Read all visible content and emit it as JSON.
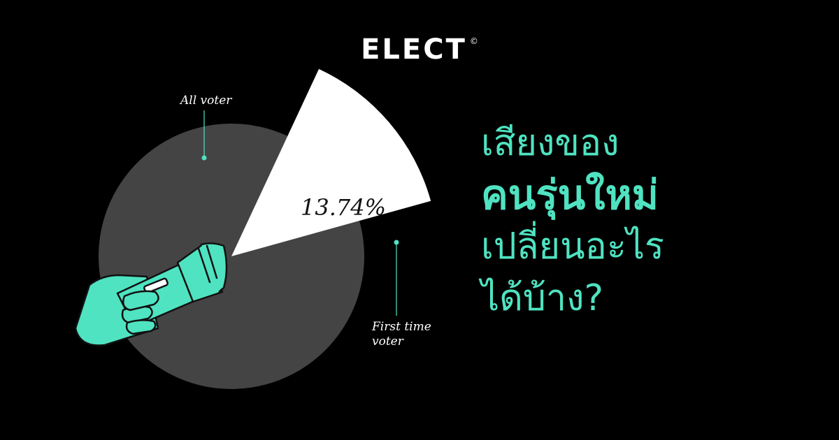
{
  "brand": {
    "name": "ELECT",
    "mark": "©"
  },
  "colors": {
    "accent": "#4fe3c1",
    "pie_rest": "#444444",
    "pie_slice": "#ffffff",
    "background": "#000000"
  },
  "chart_data": {
    "type": "pie",
    "slices": [
      {
        "label": "All voter",
        "value": 86.26,
        "color": "#444444"
      },
      {
        "label": "First time voter",
        "value": 13.74,
        "color": "#ffffff",
        "data_label": "13.74%"
      }
    ]
  },
  "headline": {
    "line1": "เสียงของ",
    "line2": "คนรุ่นใหม่",
    "line3": "เปลี่ยนอะไร",
    "line4": "ได้บ้าง?"
  },
  "illustration": {
    "icon": "hand-holding-flashlight-icon"
  }
}
